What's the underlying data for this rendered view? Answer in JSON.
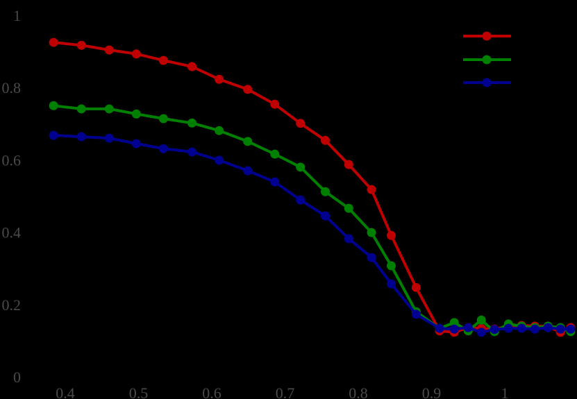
{
  "chart_data": {
    "type": "line",
    "title": "",
    "xlabel": "",
    "ylabel": "",
    "xlim": [
      0.383,
      1.09
    ],
    "ylim": [
      0,
      1
    ],
    "grid": false,
    "legend_position": "upper right",
    "background": "#000000",
    "x_ticks": [
      "0.4",
      "0.5",
      "0.6",
      "0.7",
      "0.8",
      "0.9",
      "1"
    ],
    "y_ticks": [
      "0",
      "0.2",
      "0.4",
      "0.6",
      "0.8",
      "1"
    ],
    "x": [
      0.384,
      0.422,
      0.46,
      0.497,
      0.534,
      0.573,
      0.61,
      0.649,
      0.686,
      0.721,
      0.755,
      0.787,
      0.818,
      0.845,
      0.879,
      0.911,
      0.931,
      0.95,
      0.968,
      0.986,
      1.005,
      1.023,
      1.041,
      1.059,
      1.076,
      1.09
    ],
    "series": [
      {
        "name": "",
        "color": "#c00000",
        "values": [
          0.925,
          0.917,
          0.904,
          0.893,
          0.875,
          0.858,
          0.823,
          0.795,
          0.754,
          0.701,
          0.654,
          0.587,
          0.518,
          0.391,
          0.247,
          0.127,
          0.123,
          0.136,
          0.134,
          0.132,
          0.14,
          0.142,
          0.14,
          0.14,
          0.123,
          0.136
        ]
      },
      {
        "name": "",
        "color": "#008000",
        "values": [
          0.75,
          0.741,
          0.741,
          0.727,
          0.714,
          0.702,
          0.681,
          0.651,
          0.616,
          0.58,
          0.512,
          0.466,
          0.399,
          0.307,
          0.18,
          0.134,
          0.15,
          0.127,
          0.157,
          0.125,
          0.146,
          0.14,
          0.136,
          0.14,
          0.136,
          0.125
        ]
      },
      {
        "name": "",
        "color": "#000090",
        "values": [
          0.668,
          0.664,
          0.66,
          0.645,
          0.631,
          0.622,
          0.599,
          0.57,
          0.539,
          0.489,
          0.445,
          0.382,
          0.33,
          0.257,
          0.173,
          0.134,
          0.132,
          0.136,
          0.123,
          0.131,
          0.134,
          0.134,
          0.132,
          0.136,
          0.132,
          0.132
        ]
      }
    ]
  }
}
